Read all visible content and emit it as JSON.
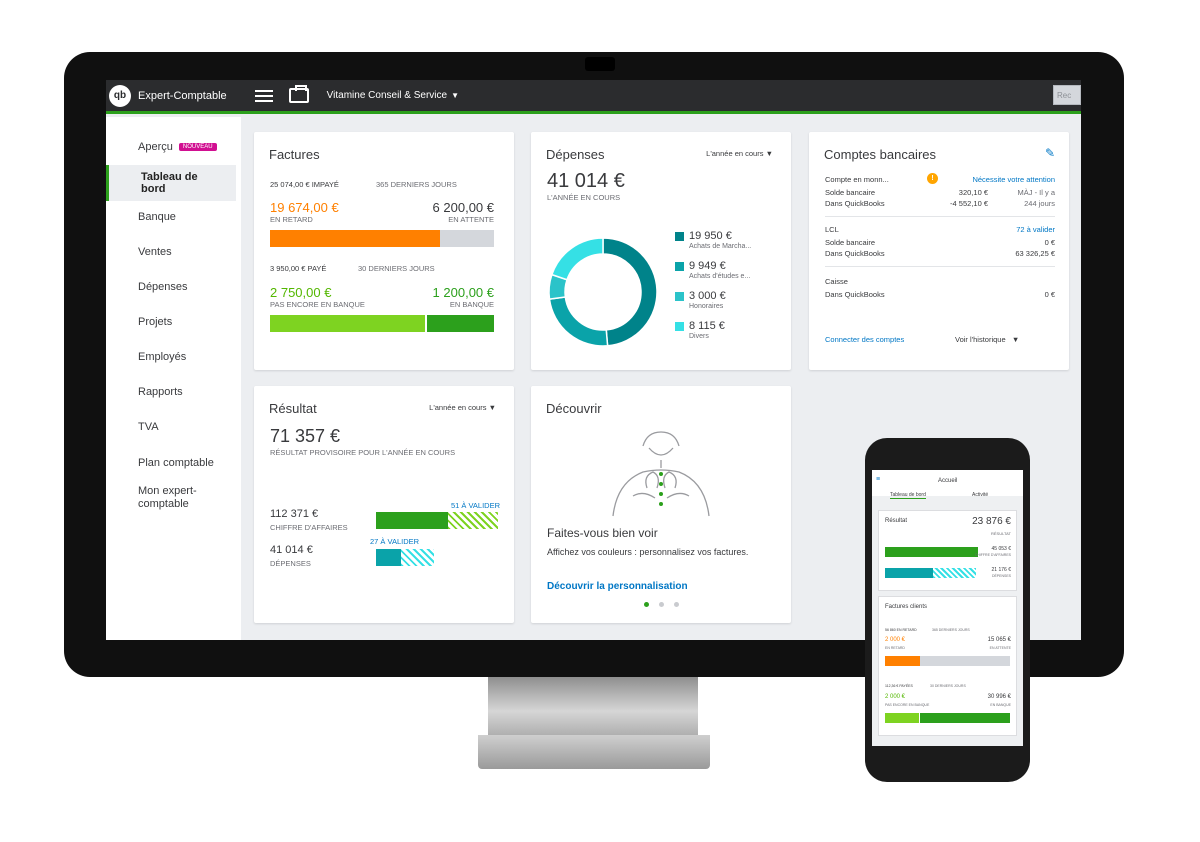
{
  "app": {
    "brand": "Expert-Comptable",
    "logo": "qb",
    "company": "Vitamine Conseil & Service",
    "topbar_right": "Rec"
  },
  "sidebar": {
    "items": [
      {
        "label": "Aperçu",
        "badge": "NOUVEAU"
      },
      {
        "label": "Tableau de bord",
        "active": true
      },
      {
        "label": "Banque"
      },
      {
        "label": "Ventes"
      },
      {
        "label": "Dépenses"
      },
      {
        "label": "Projets"
      },
      {
        "label": "Employés"
      },
      {
        "label": "Rapports"
      },
      {
        "label": "TVA"
      },
      {
        "label": "Plan comptable"
      },
      {
        "label": "Mon expert-comptable"
      }
    ]
  },
  "factures": {
    "title": "Factures",
    "unpaid": "25 074,00 € IMPAYÉ",
    "unpaid_period": "365 DERNIERS JOURS",
    "overdue_amount": "19 674,00 €",
    "overdue_label": "EN RETARD",
    "pending_amount": "6 200,00 €",
    "pending_label": "EN ATTENTE",
    "overdue_fraction": 0.76,
    "paid": "3 950,00 € PAYÉ",
    "paid_period": "30 DERNIERS JOURS",
    "notbank_amount": "2 750,00 €",
    "notbank_label": "PAS ENCORE EN BANQUE",
    "inbank_amount": "1 200,00 €",
    "inbank_label": "EN BANQUE",
    "notbank_fraction": 0.7
  },
  "depenses": {
    "title": "Dépenses",
    "period": "L'année en cours",
    "total": "41 014 €",
    "total_label": "L'ANNÉE EN COURS",
    "legend": [
      {
        "amount": "19 950 €",
        "label": "Achats de Marcha...",
        "color": "#00838a"
      },
      {
        "amount": "9 949 €",
        "label": "Achats d'études e...",
        "color": "#0aa3a9"
      },
      {
        "amount": "3 000 €",
        "label": "Honoraires",
        "color": "#2bc3c9"
      },
      {
        "amount": "8 115 €",
        "label": "Divers",
        "color": "#35e0e5"
      }
    ]
  },
  "comptes": {
    "title": "Comptes bancaires",
    "acct1_name": "Compte en monn...",
    "acct1_alert": "Nécessite votre attention",
    "bank_balance": "Solde bancaire",
    "acct1_bank": "320,10 €",
    "acct1_note1": "MÀJ - Il y a",
    "in_qb": "Dans QuickBooks",
    "acct1_qb": "-4 552,10 €",
    "acct1_note2": "244 jours",
    "acct2_name": "LCL",
    "acct2_link": "72 à valider",
    "acct2_bank": "0 €",
    "acct2_qb": "63 326,25 €",
    "acct3_name": "Caisse",
    "acct3_qb": "0 €",
    "connect": "Connecter des comptes",
    "history": "Voir l'historique"
  },
  "resultat": {
    "title": "Résultat",
    "period": "L'année en cours",
    "amount": "71 357 €",
    "label": "RÉSULTAT PROVISOIRE POUR L'ANNÉE EN COURS",
    "ca_amount": "112 371 €",
    "ca_label": "CHIFFRE D'AFFAIRES",
    "ca_todo": "51 À VALIDER",
    "dep_amount": "41 014 €",
    "dep_label": "DÉPENSES",
    "dep_todo": "27 À VALIDER"
  },
  "decouvrir": {
    "title": "Découvrir",
    "heading": "Faites-vous bien voir",
    "text": "Affichez vos couleurs : personnalisez vos factures.",
    "link": "Découvrir la personnalisation"
  },
  "phone": {
    "title": "Accueil",
    "tab1": "Tableau de bord",
    "tab2": "Activité",
    "res_label": "Résultat",
    "res_amount": "23 876 €",
    "res_sub": "RÉSULTAT",
    "ca": "45 053 €",
    "ca_label": "CHIFFRE D'AFFAIRES",
    "dep": "21 176 €",
    "dep_label": "DÉPENSES",
    "fact_title": "Factures clients",
    "unpaid": "56 860 EN RETARD",
    "unpaid_period": "365 DERNIERS JOURS",
    "overdue": "2 000 €",
    "overdue_label": "EN RETARD",
    "pending": "15 065 €",
    "pending_label": "EN ATTENTE",
    "paid": "112,36 € PAYÉES",
    "paid_period": "30 DERNIERS JOURS",
    "notbank": "2 000 €",
    "notbank_label": "PAS ENCORE EN BANQUE",
    "inbank": "30 996 €",
    "inbank_label": "EN BANQUE"
  }
}
